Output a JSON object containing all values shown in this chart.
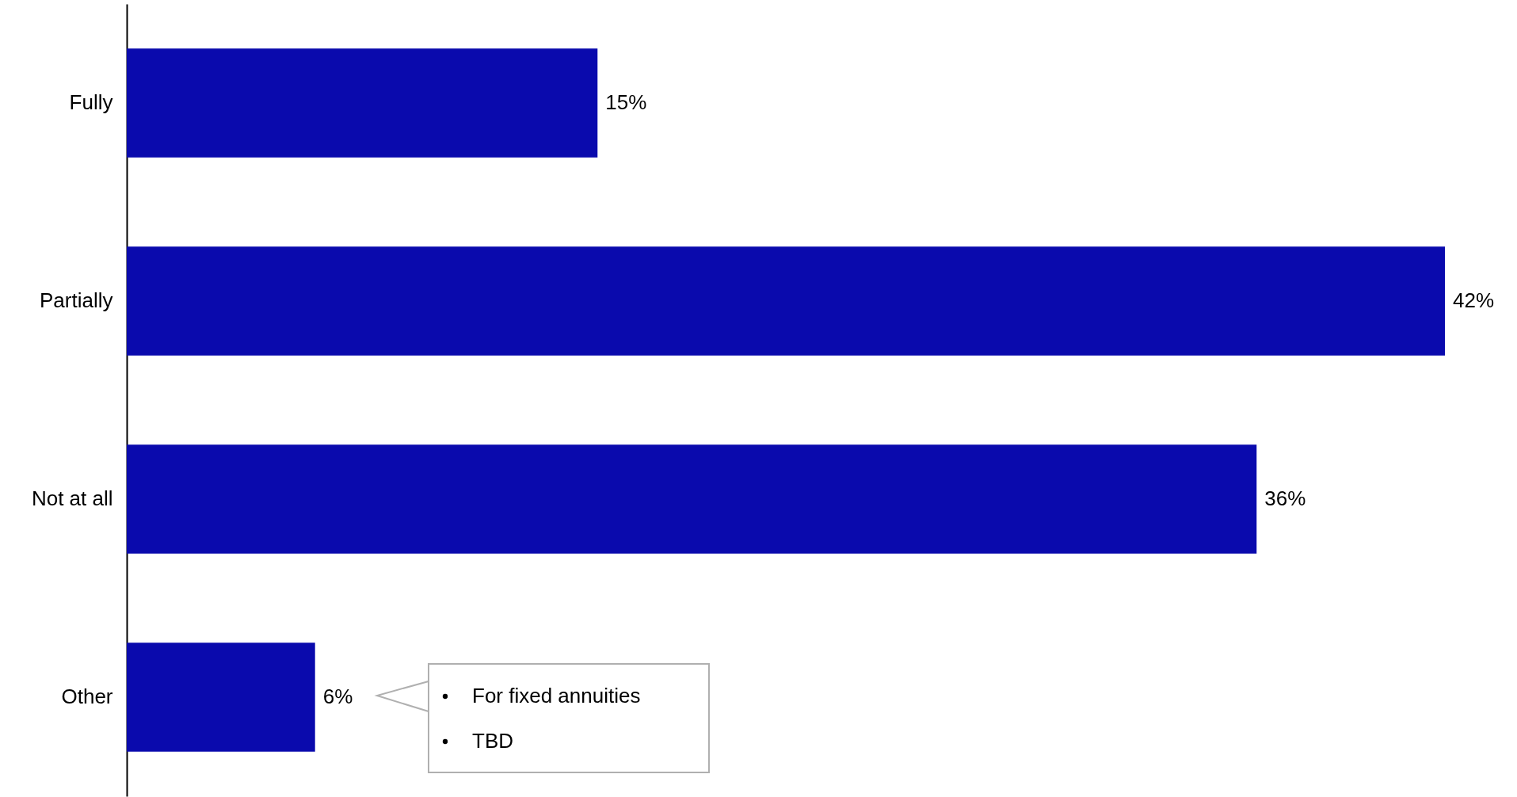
{
  "chart_data": {
    "type": "bar",
    "orientation": "horizontal",
    "categories": [
      "Fully",
      "Partially",
      "Not at all",
      "Other"
    ],
    "values": [
      15,
      42,
      36,
      6
    ],
    "value_labels": [
      "15%",
      "42%",
      "36%",
      "6%"
    ],
    "color": "#0a0aad",
    "grid": false,
    "annotations": [
      "For fixed annuities",
      "TBD"
    ]
  }
}
